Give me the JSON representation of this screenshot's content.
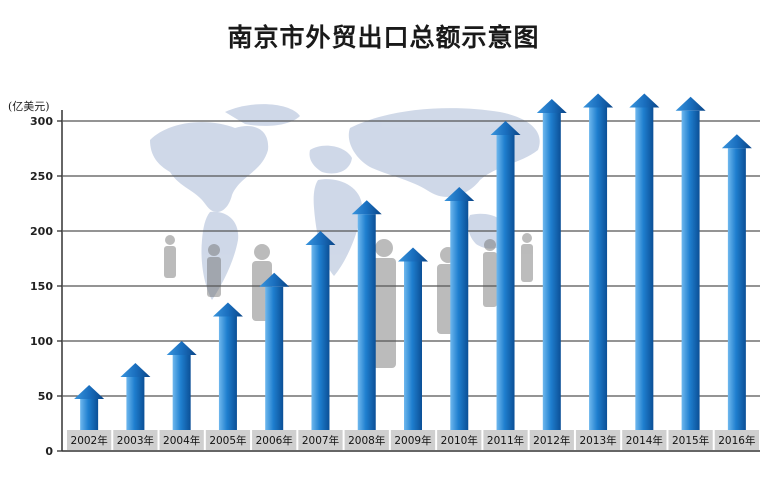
{
  "chart_data": {
    "type": "bar",
    "title": "南京市外贸出口总额示意图",
    "ylabel": "(亿美元)",
    "xlabel": "",
    "ylim": [
      0,
      300
    ],
    "yticks": [
      0,
      50,
      100,
      150,
      200,
      250,
      300
    ],
    "grid": true,
    "categories": [
      "2002年",
      "2003年",
      "2004年",
      "2005年",
      "2006年",
      "2007年",
      "2008年",
      "2009年",
      "2010年",
      "2011年",
      "2012年",
      "2013年",
      "2014年",
      "2015年",
      "2016年"
    ],
    "values": [
      60,
      80,
      100,
      135,
      162,
      200,
      228,
      185,
      240,
      300,
      320,
      325,
      325,
      322,
      288
    ]
  },
  "colors": {
    "bar_light": "#6fb8ee",
    "bar_mid": "#1f7fcf",
    "bar_dark": "#0b4f96",
    "grid": "#555555",
    "label_bg": "#cfcfcf",
    "map": "#a9b9d6"
  }
}
